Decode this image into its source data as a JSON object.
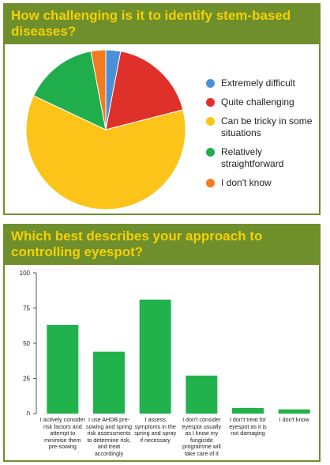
{
  "panel1": {
    "title": "How challenging is it to identify stem-based diseases?"
  },
  "panel2": {
    "title": "Which best describes your approach to controlling eyespot?"
  },
  "chart_data": [
    {
      "type": "pie",
      "title": "How challenging is it to identify stem-based diseases?",
      "categories": [
        "Extremely difficult",
        "Quite challenging",
        "Can be tricky in some situations",
        "Relatively straightforward",
        "I don't know"
      ],
      "values": [
        3,
        18,
        61,
        15,
        3
      ],
      "colors": [
        "#4a90d9",
        "#e0302a",
        "#fcc419",
        "#1fae4b",
        "#f47a20"
      ],
      "legend": "right"
    },
    {
      "type": "bar",
      "title": "Which best describes your approach to controlling eyespot?",
      "categories": [
        "I actively consider risk factors and attempt to minimise them pre-sowing",
        "I use AHDB pre-sowing and spring risk assessments to determine risk, and treat accordingly",
        "I assess symptoms in the spring and spray if necessary",
        "I don't consider eyespot usually as I know my fungicide programme will take care of it",
        "I don't treat for eyespot as it is not damaging",
        "I don't know"
      ],
      "values": [
        63,
        44,
        81,
        27,
        4,
        3
      ],
      "ylim": [
        0,
        100
      ],
      "yticks": [
        0,
        25,
        50,
        75,
        100
      ],
      "grid": false,
      "color": "#22b24c"
    }
  ]
}
